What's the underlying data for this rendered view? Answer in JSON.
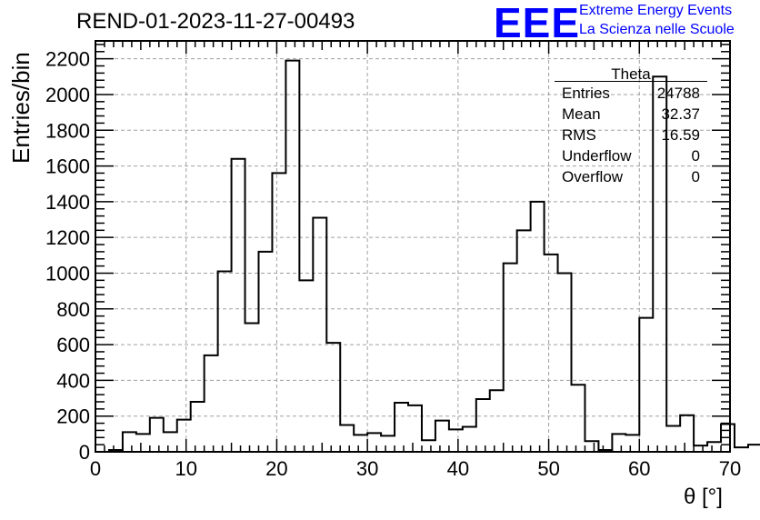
{
  "title": "REND-01-2023-11-27-00493",
  "logo": {
    "text": "EEE",
    "line1": "Extreme Energy Events",
    "line2": "La Scienza nelle Scuole",
    "color": "#0000ff"
  },
  "stats": {
    "title": "Theta",
    "rows": [
      {
        "key": "Entries",
        "value": "24788"
      },
      {
        "key": "Mean",
        "value": "32.37"
      },
      {
        "key": "RMS",
        "value": "16.59"
      },
      {
        "key": "Underflow",
        "value": "0"
      },
      {
        "key": "Overflow",
        "value": "0"
      }
    ]
  },
  "chart_data": {
    "type": "histogram",
    "xlabel": "θ [°]",
    "ylabel": "Entries/bin",
    "xlim": [
      0,
      70
    ],
    "ylim": [
      0,
      2300
    ],
    "grid": true,
    "bin_width": 1.5,
    "bin_edges_start": 1.5,
    "x_ticks": [
      0,
      10,
      20,
      30,
      40,
      50,
      60,
      70
    ],
    "y_ticks": [
      0,
      200,
      400,
      600,
      800,
      1000,
      1200,
      1400,
      1600,
      1800,
      2000,
      2200
    ],
    "values": [
      10,
      110,
      100,
      190,
      110,
      180,
      280,
      540,
      1010,
      1640,
      720,
      1120,
      1560,
      2190,
      960,
      1310,
      610,
      150,
      95,
      105,
      90,
      275,
      260,
      65,
      175,
      125,
      140,
      295,
      345,
      1055,
      1240,
      1400,
      1105,
      1000,
      375,
      60,
      10,
      100,
      95,
      750,
      2100,
      145,
      205,
      35,
      55,
      155,
      25,
      40,
      20
    ]
  }
}
